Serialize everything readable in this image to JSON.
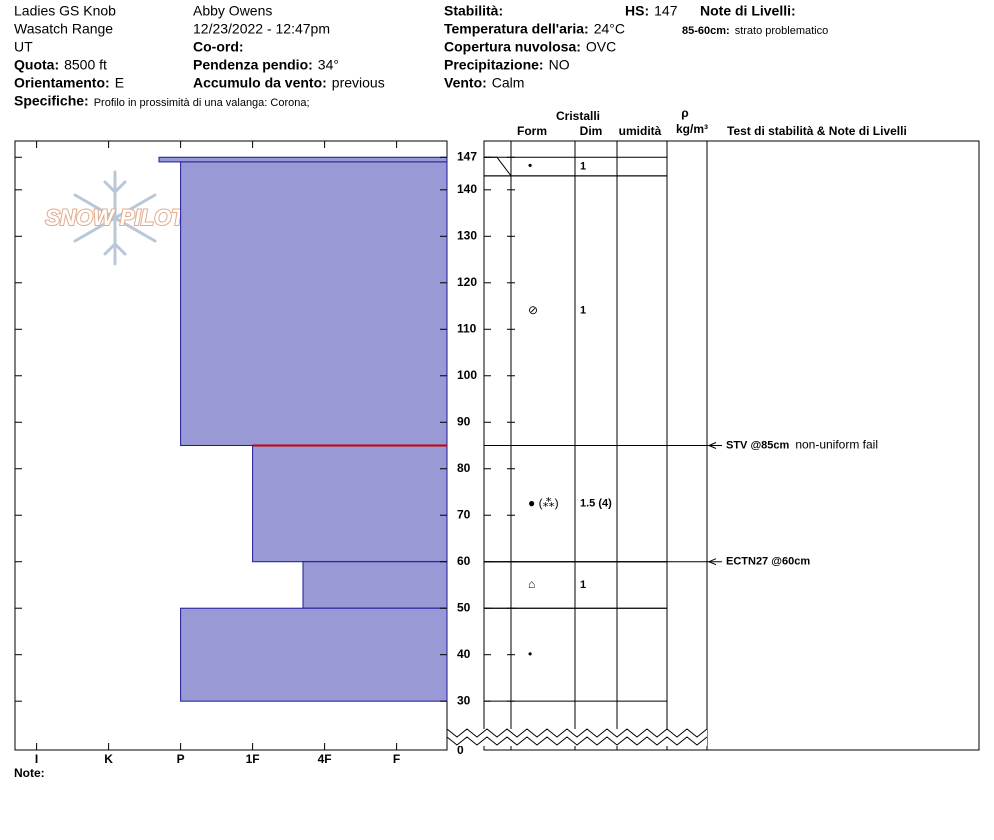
{
  "header": {
    "site": "Ladies GS Knob",
    "range": "Wasatch Range",
    "state": "UT",
    "elevation": {
      "label": "Quota:",
      "value": "8500 ft"
    },
    "aspect": {
      "label": "Orientamento:",
      "value": "E"
    },
    "specifics": {
      "label": "Specifiche:",
      "value": "Profilo in prossimità di una valanga: Corona;"
    },
    "observer": "Abby Owens",
    "datetime": "12/23/2022 - 12:47pm",
    "coordinates": "Co-ord:",
    "slope": {
      "label": "Pendenza pendio:",
      "value": "34°"
    },
    "wind_loading": {
      "label": "Accumulo da vento:",
      "value": "previous"
    },
    "stability": "Stabilità:",
    "snow_height": {
      "label": "HS:",
      "value": 147
    },
    "air_temperature": {
      "label": "Temperatura dell'aria:",
      "value": "24°C"
    },
    "sky": {
      "label": "Copertura nuvolosa:",
      "value": "OVC"
    },
    "precipitation": {
      "label": "Precipitazione:",
      "value": "NO"
    },
    "wind": {
      "label": "Vento:",
      "value": "Calm"
    },
    "layer_notes_title": "Note di Livelli:",
    "layer_note": {
      "label": "85-60cm:",
      "value": "strato problematico"
    }
  },
  "logo": "SNOW PILOT",
  "columns": {
    "crystals": "Cristalli",
    "form": "Form",
    "size": "Dim",
    "moisture": "umidità",
    "density": "ρ",
    "density_unit": "kg/m³",
    "tests": "Test di stabilità & Note di Livelli"
  },
  "notes_label": "Note:",
  "chart_data": {
    "type": "snowpit",
    "xticks": [
      {
        "value": 6,
        "label": "I"
      },
      {
        "value": 5,
        "label": "K"
      },
      {
        "value": 4,
        "label": "P"
      },
      {
        "value": 3,
        "label": "1F"
      },
      {
        "value": 2,
        "label": "4F"
      },
      {
        "value": 1,
        "label": "F"
      }
    ],
    "xlim": [
      6.3,
      0.3
    ],
    "ylim": [
      19.5,
      150.5
    ],
    "yticks": [
      30,
      40,
      50,
      60,
      70,
      80,
      90,
      100,
      110,
      120,
      130,
      140,
      147
    ],
    "ground": 0,
    "color": "#9999d6",
    "layers": {
      "top": [
        147,
        146,
        85,
        60,
        50
      ],
      "bottom": [
        146,
        85,
        60,
        50,
        30
      ],
      "hardness": [
        4.3,
        4,
        3,
        2.3,
        4
      ]
    },
    "highlight": 85,
    "highlight_color": "#cc0000",
    "grains": {
      "top": [
        147,
        143,
        85,
        60,
        50
      ],
      "bottom": [
        143,
        85,
        60,
        50,
        30
      ],
      "form": [
        "•",
        "⊘",
        "● (⁂)",
        "⌂",
        "•"
      ],
      "size": [
        "1",
        "1",
        "1.5 (4)",
        "1",
        null
      ]
    },
    "tests": [
      {
        "depth": 85,
        "name": "STV @85cm",
        "result": "non-uniform fail"
      },
      {
        "depth": 60,
        "name": "ECTN27 @60cm"
      }
    ]
  }
}
